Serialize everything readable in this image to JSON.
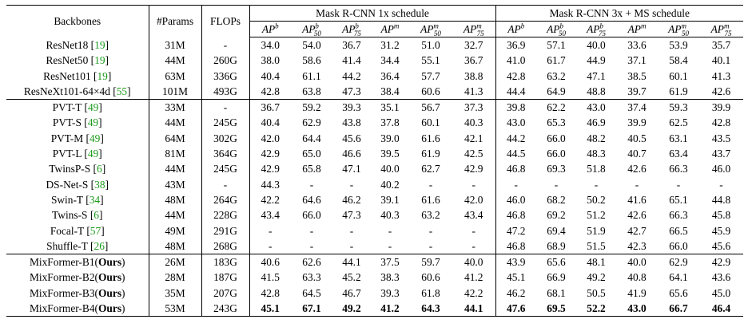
{
  "columns": {
    "backbone": "Backbones",
    "params": "#Params",
    "flops": "FLOPs",
    "group1": "Mask R-CNN 1x schedule",
    "group2": "Mask R-CNN 3x + MS schedule",
    "metrics": [
      {
        "base": "AP",
        "sup": "b",
        "sub": ""
      },
      {
        "base": "AP",
        "sup": "b",
        "sub": "50"
      },
      {
        "base": "AP",
        "sup": "b",
        "sub": "75"
      },
      {
        "base": "AP",
        "sup": "m",
        "sub": ""
      },
      {
        "base": "AP",
        "sup": "m",
        "sub": "50"
      },
      {
        "base": "AP",
        "sup": "m",
        "sub": "75"
      }
    ]
  },
  "groups": [
    {
      "rows": [
        {
          "name": "ResNet18",
          "cite": "19",
          "params": "31M",
          "flops": "-",
          "v": [
            "34.0",
            "54.0",
            "36.7",
            "31.2",
            "51.0",
            "32.7",
            "36.9",
            "57.1",
            "40.0",
            "33.6",
            "53.9",
            "35.7"
          ]
        },
        {
          "name": "ResNet50",
          "cite": "19",
          "params": "44M",
          "flops": "260G",
          "v": [
            "38.0",
            "58.6",
            "41.4",
            "34.4",
            "55.1",
            "36.7",
            "41.0",
            "61.7",
            "44.9",
            "37.1",
            "58.4",
            "40.1"
          ]
        },
        {
          "name": "ResNet101",
          "cite": "19",
          "params": "63M",
          "flops": "336G",
          "v": [
            "40.4",
            "61.1",
            "44.2",
            "36.4",
            "57.7",
            "38.8",
            "42.8",
            "63.2",
            "47.1",
            "38.5",
            "60.1",
            "41.3"
          ]
        },
        {
          "name": "ResNeXt101-64×4d",
          "cite": "55",
          "params": "101M",
          "flops": "493G",
          "v": [
            "42.8",
            "63.8",
            "47.3",
            "38.4",
            "60.6",
            "41.3",
            "44.4",
            "64.9",
            "48.8",
            "39.7",
            "61.9",
            "42.6"
          ]
        }
      ]
    },
    {
      "rows": [
        {
          "name": "PVT-T",
          "cite": "49",
          "params": "33M",
          "flops": "-",
          "v": [
            "36.7",
            "59.2",
            "39.3",
            "35.1",
            "56.7",
            "37.3",
            "39.8",
            "62.2",
            "43.0",
            "37.4",
            "59.3",
            "39.9"
          ]
        },
        {
          "name": "PVT-S",
          "cite": "49",
          "params": "44M",
          "flops": "245G",
          "v": [
            "40.4",
            "62.9",
            "43.8",
            "37.8",
            "60.1",
            "40.3",
            "43.0",
            "65.3",
            "46.9",
            "39.9",
            "62.5",
            "42.8"
          ]
        },
        {
          "name": "PVT-M",
          "cite": "49",
          "params": "64M",
          "flops": "302G",
          "v": [
            "42.0",
            "64.4",
            "45.6",
            "39.0",
            "61.6",
            "42.1",
            "44.2",
            "66.0",
            "48.2",
            "40.5",
            "63.1",
            "43.5"
          ]
        },
        {
          "name": "PVT-L",
          "cite": "49",
          "params": "81M",
          "flops": "364G",
          "v": [
            "42.9",
            "65.0",
            "46.6",
            "39.5",
            "61.9",
            "42.5",
            "44.5",
            "66.0",
            "48.3",
            "40.7",
            "63.4",
            "43.7"
          ]
        },
        {
          "name": "TwinsP-S",
          "cite": "6",
          "params": "44M",
          "flops": "245G",
          "v": [
            "42.9",
            "65.8",
            "47.1",
            "40.0",
            "62.7",
            "42.9",
            "46.8",
            "69.3",
            "51.8",
            "42.6",
            "66.3",
            "46.0"
          ]
        },
        {
          "name": "DS-Net-S",
          "cite": "38",
          "params": "43M",
          "flops": "-",
          "v": [
            "44.3",
            "-",
            "-",
            "40.2",
            "-",
            "-",
            "-",
            "-",
            "-",
            "-",
            "-",
            "-"
          ]
        },
        {
          "name": "Swin-T",
          "cite": "34",
          "params": "48M",
          "flops": "264G",
          "v": [
            "42.2",
            "64.6",
            "46.2",
            "39.1",
            "61.6",
            "42.0",
            "46.0",
            "68.2",
            "50.2",
            "41.6",
            "65.1",
            "44.8"
          ]
        },
        {
          "name": "Twins-S",
          "cite": "6",
          "params": "44M",
          "flops": "228G",
          "v": [
            "43.4",
            "66.0",
            "47.3",
            "40.3",
            "63.2",
            "43.4",
            "46.8",
            "69.2",
            "51.2",
            "42.6",
            "66.3",
            "45.8"
          ]
        },
        {
          "name": "Focal-T",
          "cite": "57",
          "params": "49M",
          "flops": "291G",
          "v": [
            "-",
            "-",
            "-",
            "-",
            "-",
            "-",
            "47.2",
            "69.4",
            "51.9",
            "42.7",
            "66.5",
            "45.9"
          ]
        },
        {
          "name": "Shuffle-T",
          "cite": "26",
          "params": "48M",
          "flops": "268G",
          "v": [
            "-",
            "-",
            "-",
            "-",
            "-",
            "-",
            "46.8",
            "68.9",
            "51.5",
            "42.3",
            "66.0",
            "45.6"
          ]
        }
      ]
    },
    {
      "rows": [
        {
          "name": "MixFormer-B1",
          "ours": "Ours",
          "params": "26M",
          "flops": "183G",
          "v": [
            "40.6",
            "62.6",
            "44.1",
            "37.5",
            "59.7",
            "40.0",
            "43.9",
            "65.6",
            "48.1",
            "40.0",
            "62.9",
            "42.9"
          ],
          "bold": []
        },
        {
          "name": "MixFormer-B2",
          "ours": "Ours",
          "params": "28M",
          "flops": "187G",
          "v": [
            "41.5",
            "63.3",
            "45.2",
            "38.3",
            "60.6",
            "41.2",
            "45.1",
            "66.9",
            "49.2",
            "40.8",
            "64.1",
            "43.6"
          ],
          "bold": []
        },
        {
          "name": "MixFormer-B3",
          "ours": "Ours",
          "params": "35M",
          "flops": "207G",
          "v": [
            "42.8",
            "64.5",
            "46.7",
            "39.3",
            "61.8",
            "42.2",
            "46.2",
            "68.1",
            "50.5",
            "41.9",
            "65.6",
            "45.0"
          ],
          "bold": []
        },
        {
          "name": "MixFormer-B4",
          "ours": "Ours",
          "params": "53M",
          "flops": "243G",
          "v": [
            "45.1",
            "67.1",
            "49.2",
            "41.2",
            "64.3",
            "44.1",
            "47.6",
            "69.5",
            "52.2",
            "43.0",
            "66.7",
            "46.4"
          ],
          "bold": [
            0,
            1,
            2,
            3,
            4,
            5,
            6,
            7,
            8,
            9,
            10,
            11
          ]
        }
      ]
    }
  ]
}
